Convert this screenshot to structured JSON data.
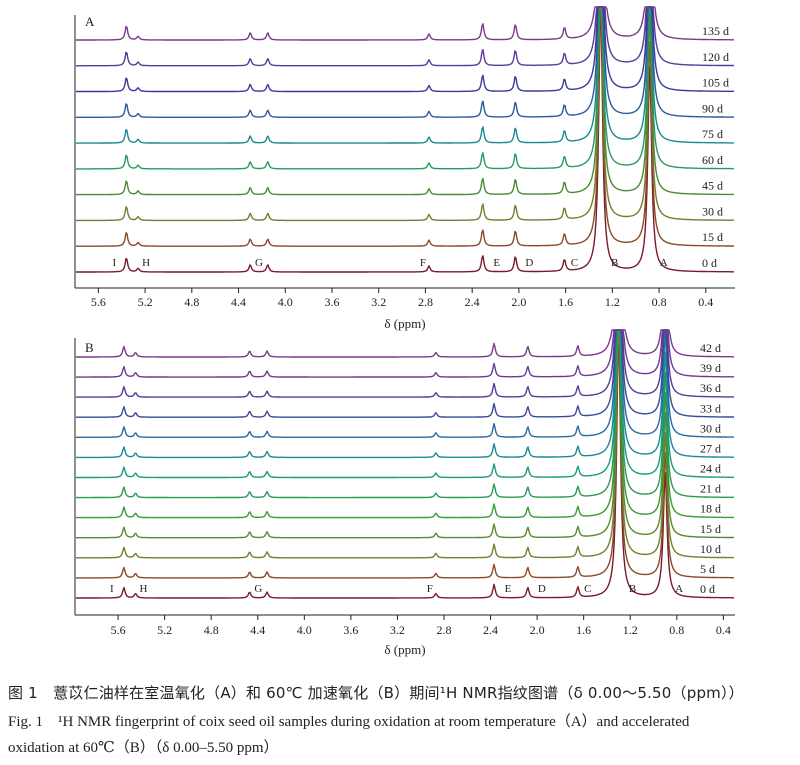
{
  "chart_data": [
    {
      "panel": "A",
      "type": "line",
      "xlabel": "δ (ppm)",
      "xlim": [
        5.8,
        0.15
      ],
      "x_reversed": true,
      "xticks": [
        5.6,
        5.2,
        4.8,
        4.4,
        4.0,
        3.6,
        3.2,
        2.8,
        2.4,
        2.0,
        1.6,
        1.2,
        0.8,
        0.4
      ],
      "xtick_labels": [
        "5.6",
        "5.2",
        "4.8",
        "4.4",
        "4.0",
        "3.6",
        "3.2",
        "2.8",
        "2.4",
        "2.0",
        "1.6",
        "1.2",
        "0.8",
        "0.4"
      ],
      "series": [
        {
          "name": "0 d",
          "color": "#7a1a2a"
        },
        {
          "name": "15 d",
          "color": "#8a4a28"
        },
        {
          "name": "30 d",
          "color": "#7a7a30"
        },
        {
          "name": "45 d",
          "color": "#4a8a35"
        },
        {
          "name": "60 d",
          "color": "#2a9a60"
        },
        {
          "name": "75 d",
          "color": "#1a8a90"
        },
        {
          "name": "90 d",
          "color": "#2a5aa0"
        },
        {
          "name": "105 d",
          "color": "#3a3a9a"
        },
        {
          "name": "120 d",
          "color": "#5a3a9a"
        },
        {
          "name": "135 d",
          "color": "#7a3a8a"
        }
      ],
      "peaks": [
        {
          "label": "I",
          "ppm": 5.36,
          "height": 0.12
        },
        {
          "label": "H",
          "ppm": 5.26,
          "height": 0.03
        },
        {
          "label": "G",
          "ppm": 4.3,
          "height": 0.06
        },
        {
          "label": "G",
          "ppm": 4.15,
          "height": 0.06
        },
        {
          "label": "F",
          "ppm": 2.77,
          "height": 0.05
        },
        {
          "label": "E",
          "ppm": 2.31,
          "height": 0.14
        },
        {
          "label": "D",
          "ppm": 2.03,
          "height": 0.13
        },
        {
          "label": "C",
          "ppm": 1.61,
          "height": 0.1
        },
        {
          "label": "B",
          "ppm": 1.3,
          "height": 1.0
        },
        {
          "label": "A",
          "ppm": 0.88,
          "height": 0.9
        }
      ]
    },
    {
      "panel": "B",
      "type": "line",
      "xlabel": "δ (ppm)",
      "xlim": [
        5.97,
        0.3
      ],
      "x_reversed": true,
      "xticks": [
        5.6,
        5.2,
        4.8,
        4.4,
        4.0,
        3.6,
        3.2,
        2.8,
        2.4,
        2.0,
        1.6,
        1.2,
        0.8,
        0.4
      ],
      "xtick_labels": [
        "5.6",
        "5.2",
        "4.8",
        "4.4",
        "4.0",
        "3.6",
        "3.2",
        "2.8",
        "2.4",
        "2.0",
        "1.6",
        "1.2",
        "0.8",
        "0.4"
      ],
      "series": [
        {
          "name": "0 d",
          "color": "#7a1a2a"
        },
        {
          "name": "5 d",
          "color": "#8a4a28"
        },
        {
          "name": "10 d",
          "color": "#7a7a30"
        },
        {
          "name": "15 d",
          "color": "#5a8a30"
        },
        {
          "name": "18 d",
          "color": "#3a9a35"
        },
        {
          "name": "21 d",
          "color": "#2a9a55"
        },
        {
          "name": "24 d",
          "color": "#1a9a80"
        },
        {
          "name": "27 d",
          "color": "#1a8a95"
        },
        {
          "name": "30 d",
          "color": "#2a6aa0"
        },
        {
          "name": "33 d",
          "color": "#3a4a9a"
        },
        {
          "name": "36 d",
          "color": "#5a3a9a"
        },
        {
          "name": "39 d",
          "color": "#6a3a95"
        },
        {
          "name": "42 d",
          "color": "#7a3a8a"
        }
      ],
      "peaks": [
        {
          "label": "I",
          "ppm": 5.55,
          "height": 0.07
        },
        {
          "label": "H",
          "ppm": 5.45,
          "height": 0.03
        },
        {
          "label": "G",
          "ppm": 4.47,
          "height": 0.04
        },
        {
          "label": "G",
          "ppm": 4.32,
          "height": 0.04
        },
        {
          "label": "F",
          "ppm": 2.87,
          "height": 0.03
        },
        {
          "label": "E",
          "ppm": 2.37,
          "height": 0.09
        },
        {
          "label": "D",
          "ppm": 2.08,
          "height": 0.07
        },
        {
          "label": "C",
          "ppm": 1.65,
          "height": 0.07
        },
        {
          "label": "B",
          "ppm": 1.3,
          "height": 1.0
        },
        {
          "label": "A",
          "ppm": 0.9,
          "height": 0.5
        }
      ]
    }
  ],
  "caption": {
    "cn": "图 1　薏苡仁油样在室温氧化（A）和 60℃ 加速氧化（B）期间¹H NMR指纹图谱（δ 0.00～5.50（ppm））",
    "en_line1": "Fig. 1　¹H NMR fingerprint of coix seed oil samples during oxidation at room temperature（A）and accelerated",
    "en_line2": "oxidation at 60℃（B）（δ 0.00–5.50 ppm）"
  }
}
